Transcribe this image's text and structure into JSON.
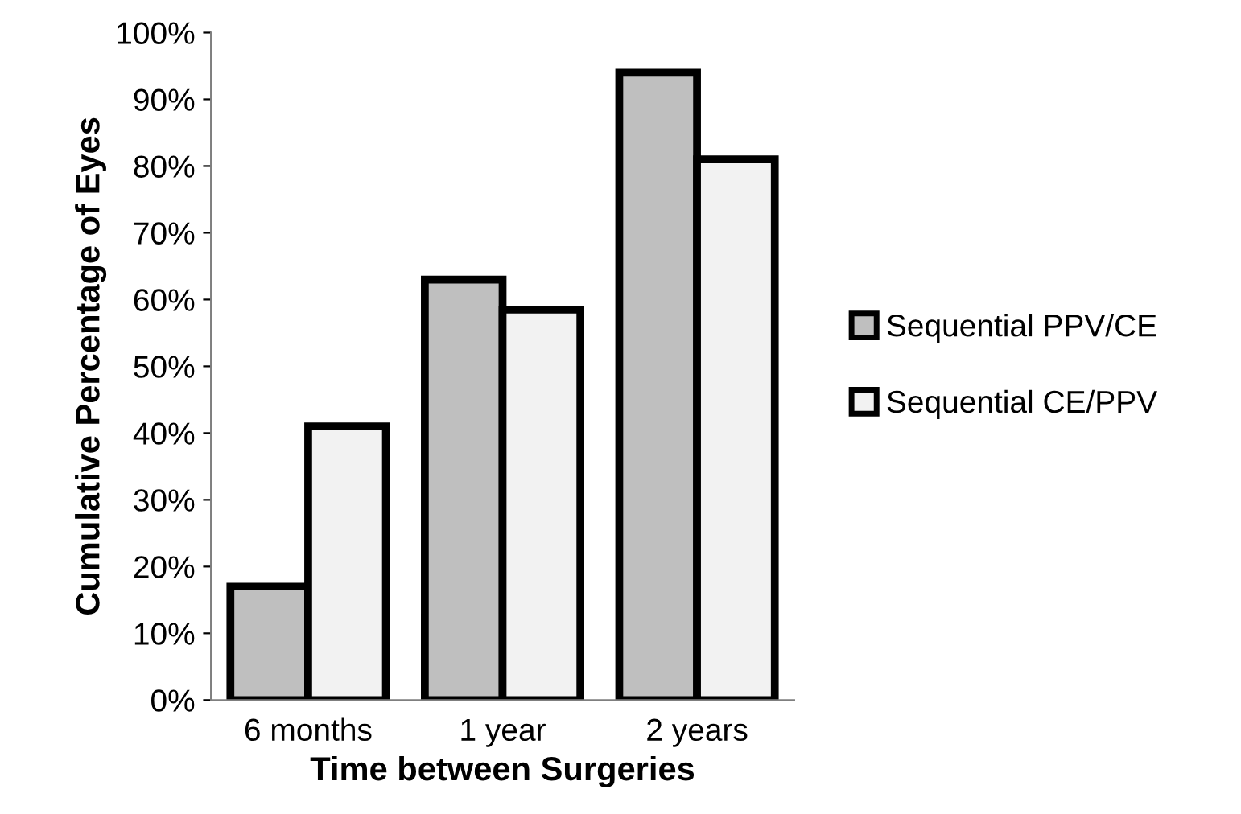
{
  "chart_data": {
    "type": "bar",
    "xlabel": "Time between Surgeries",
    "ylabel": "Cumulative Percentage of Eyes",
    "categories": [
      "6 months",
      "1 year",
      "2 years"
    ],
    "series": [
      {
        "name": "Sequential PPV/CE",
        "color": "#bfbfbf",
        "values": [
          17,
          63,
          94
        ]
      },
      {
        "name": "Sequential CE/PPV",
        "color": "#f2f2f2",
        "values": [
          41,
          58.5,
          81
        ]
      }
    ],
    "ylim": [
      0,
      100
    ],
    "yticks": [
      {
        "value": 0,
        "label": "0%"
      },
      {
        "value": 10,
        "label": "10%"
      },
      {
        "value": 20,
        "label": "20%"
      },
      {
        "value": 30,
        "label": "30%"
      },
      {
        "value": 40,
        "label": "40%"
      },
      {
        "value": 50,
        "label": "50%"
      },
      {
        "value": 60,
        "label": "60%"
      },
      {
        "value": 70,
        "label": "70%"
      },
      {
        "value": 80,
        "label": "80%"
      },
      {
        "value": 90,
        "label": "90%"
      },
      {
        "value": 100,
        "label": "100%"
      }
    ],
    "grid": false,
    "legend": "right"
  }
}
